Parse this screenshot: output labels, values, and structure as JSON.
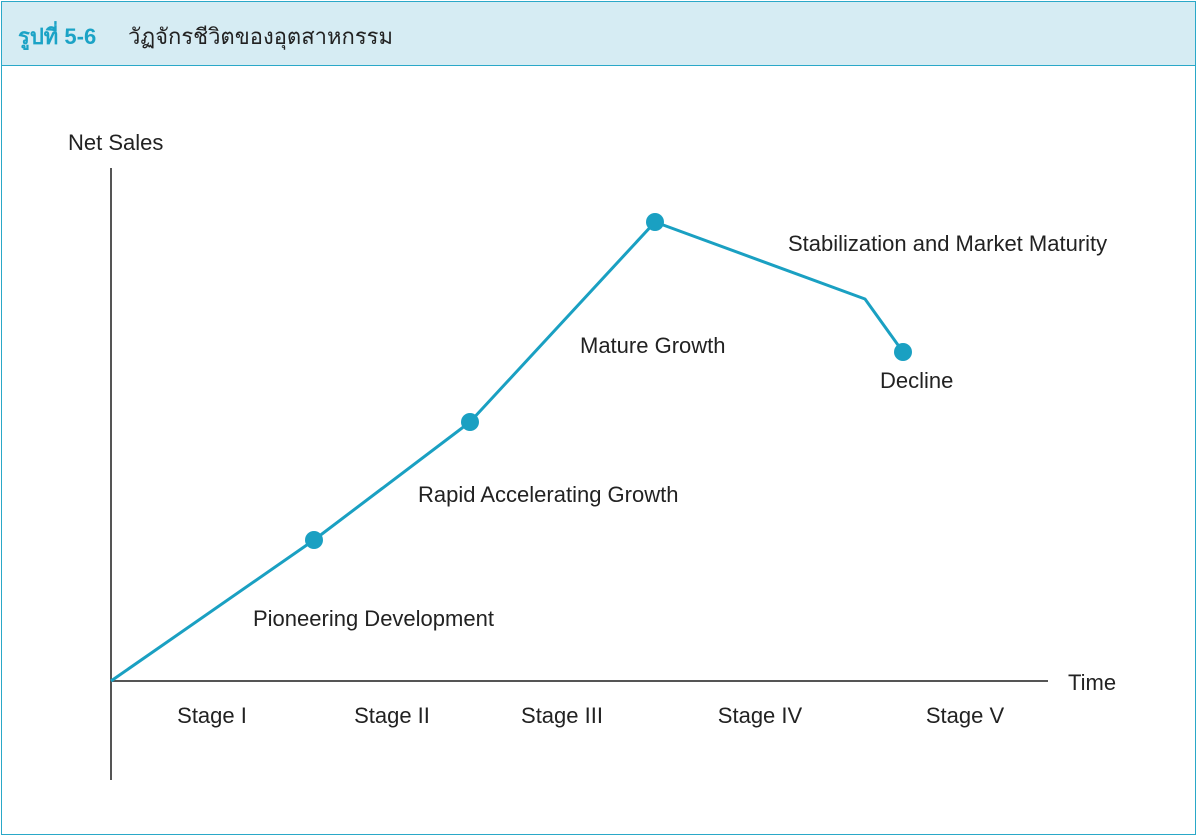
{
  "figure": {
    "label": "รูปที่ 5-6",
    "title": "วัฏจักรชีวิตของอุตสาหกรรม"
  },
  "axes": {
    "y_label": "Net Sales",
    "x_label": "Time"
  },
  "stages": [
    "Stage I",
    "Stage II",
    "Stage III",
    "Stage IV",
    "Stage V"
  ],
  "phases": [
    "Pioneering Development",
    "Rapid Accelerating Growth",
    "Mature Growth",
    "Stabilization and Market Maturity",
    "Decline"
  ],
  "colors": {
    "accent": "#1ba3c6",
    "curve": "#1aa0c2",
    "header_bg": "#d6ecf3",
    "axis": "#555555"
  }
}
